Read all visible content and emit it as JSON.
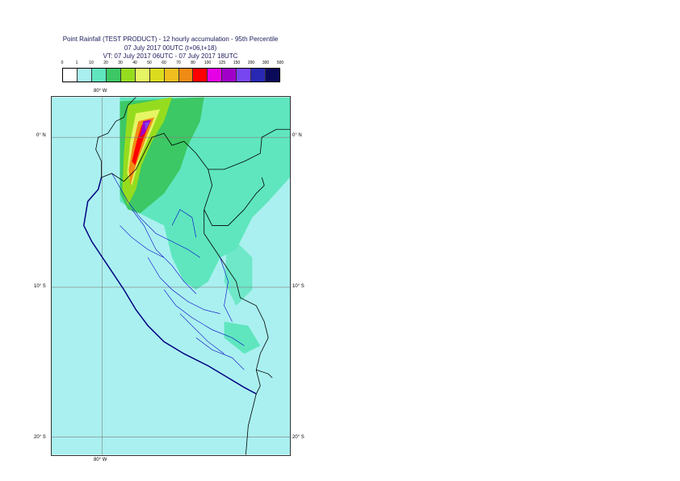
{
  "title": {
    "line1": "Point Rainfall (TEST PRODUCT) - 12 hourly accumulation - 95th Percentile",
    "line2": "07 July 2017 00UTC (t+06,t+18)",
    "line3": "VT: 07 July 2017 06UTC - 07 July 2017 18UTC"
  },
  "legend": {
    "ticks": [
      "0",
      "1",
      "10",
      "20",
      "30",
      "40",
      "50",
      "60",
      "70",
      "80",
      "100",
      "125",
      "150",
      "200",
      "300",
      "500"
    ],
    "colors": [
      "#ffffff",
      "#aaf0f0",
      "#5fe6be",
      "#3cc864",
      "#96dc1e",
      "#e6f564",
      "#dcdc1e",
      "#f0be1e",
      "#f08c14",
      "#ff0000",
      "#e600e6",
      "#a000c8",
      "#7846f0",
      "#2828b4",
      "#0a0a5a"
    ]
  },
  "map": {
    "lon_labels": {
      "top": "80° W",
      "bottom": "80° W"
    },
    "lat_labels": [
      {
        "left": "0° N",
        "right": "0° N"
      },
      {
        "left": "10° S",
        "right": "10° S"
      },
      {
        "left": "20° S",
        "right": "20° S"
      }
    ],
    "colors": {
      "sea": "#aaf0f0",
      "land_light": "#5fe6be",
      "gridline": "#808080",
      "border": "#000000",
      "admin": "#0000c8"
    }
  }
}
